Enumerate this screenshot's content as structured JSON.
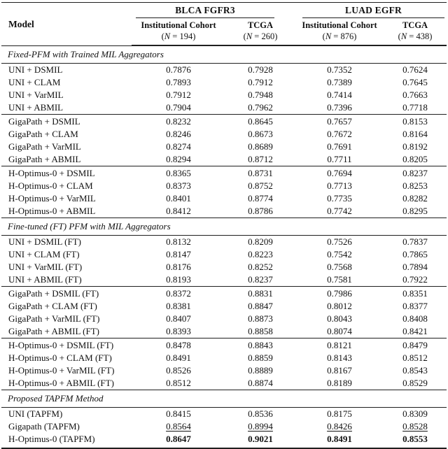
{
  "page": {
    "background_color": "#ffffff",
    "text_color": "#111111",
    "rule_color": "#1f1f1f"
  },
  "table": {
    "header": {
      "model_label": "Model",
      "groups": [
        {
          "label": "BLCA FGFR3",
          "columns": [
            {
              "name": "Institutional Cohort",
              "n": "(N = 194)"
            },
            {
              "name": "TCGA",
              "n": "(N = 260)"
            }
          ]
        },
        {
          "label": "LUAD EGFR",
          "columns": [
            {
              "name": "Institutional Cohort",
              "n": "(N = 876)"
            },
            {
              "name": "TCGA",
              "n": "(N = 438)"
            }
          ]
        }
      ]
    },
    "sections": [
      {
        "title": "Fixed-PFM with Trained MIL Aggregators",
        "row_groups": [
          [
            {
              "model": "UNI + DSMIL",
              "values": [
                "0.7876",
                "0.7928",
                "0.7352",
                "0.7624"
              ],
              "emphasis": "none"
            },
            {
              "model": "UNI + CLAM",
              "values": [
                "0.7893",
                "0.7912",
                "0.7389",
                "0.7645"
              ],
              "emphasis": "none"
            },
            {
              "model": "UNI + VarMIL",
              "values": [
                "0.7912",
                "0.7948",
                "0.7414",
                "0.7663"
              ],
              "emphasis": "none"
            },
            {
              "model": "UNI + ABMIL",
              "values": [
                "0.7904",
                "0.7962",
                "0.7396",
                "0.7718"
              ],
              "emphasis": "none"
            }
          ],
          [
            {
              "model": "GigaPath + DSMIL",
              "values": [
                "0.8232",
                "0.8645",
                "0.7657",
                "0.8153"
              ],
              "emphasis": "none"
            },
            {
              "model": "GigaPath + CLAM",
              "values": [
                "0.8246",
                "0.8673",
                "0.7672",
                "0.8164"
              ],
              "emphasis": "none"
            },
            {
              "model": "GigaPath + VarMIL",
              "values": [
                "0.8274",
                "0.8689",
                "0.7691",
                "0.8192"
              ],
              "emphasis": "none"
            },
            {
              "model": "GigaPath + ABMIL",
              "values": [
                "0.8294",
                "0.8712",
                "0.7711",
                "0.8205"
              ],
              "emphasis": "none"
            }
          ],
          [
            {
              "model": "H-Optimus-0 + DSMIL",
              "values": [
                "0.8365",
                "0.8731",
                "0.7694",
                "0.8237"
              ],
              "emphasis": "none"
            },
            {
              "model": "H-Optimus-0 + CLAM",
              "values": [
                "0.8373",
                "0.8752",
                "0.7713",
                "0.8253"
              ],
              "emphasis": "none"
            },
            {
              "model": "H-Optimus-0 + VarMIL",
              "values": [
                "0.8401",
                "0.8774",
                "0.7735",
                "0.8282"
              ],
              "emphasis": "none"
            },
            {
              "model": "H-Optimus-0 + ABMIL",
              "values": [
                "0.8412",
                "0.8786",
                "0.7742",
                "0.8295"
              ],
              "emphasis": "none"
            }
          ]
        ]
      },
      {
        "title": "Fine-tuned (FT) PFM with MIL Aggregators",
        "row_groups": [
          [
            {
              "model": "UNI + DSMIL (FT)",
              "values": [
                "0.8132",
                "0.8209",
                "0.7526",
                "0.7837"
              ],
              "emphasis": "none"
            },
            {
              "model": "UNI + CLAM (FT)",
              "values": [
                "0.8147",
                "0.8223",
                "0.7542",
                "0.7865"
              ],
              "emphasis": "none"
            },
            {
              "model": "UNI + VarMIL (FT)",
              "values": [
                "0.8176",
                "0.8252",
                "0.7568",
                "0.7894"
              ],
              "emphasis": "none"
            },
            {
              "model": "UNI + ABMIL (FT)",
              "values": [
                "0.8193",
                "0.8237",
                "0.7581",
                "0.7922"
              ],
              "emphasis": "none"
            }
          ],
          [
            {
              "model": "GigaPath + DSMIL (FT)",
              "values": [
                "0.8372",
                "0.8831",
                "0.7986",
                "0.8351"
              ],
              "emphasis": "none"
            },
            {
              "model": "GigaPath + CLAM (FT)",
              "values": [
                "0.8381",
                "0.8847",
                "0.8012",
                "0.8377"
              ],
              "emphasis": "none"
            },
            {
              "model": "GigaPath + VarMIL (FT)",
              "values": [
                "0.8407",
                "0.8873",
                "0.8043",
                "0.8408"
              ],
              "emphasis": "none"
            },
            {
              "model": "GigaPath + ABMIL (FT)",
              "values": [
                "0.8393",
                "0.8858",
                "0.8074",
                "0.8421"
              ],
              "emphasis": "none"
            }
          ],
          [
            {
              "model": "H-Optimus-0 + DSMIL (FT)",
              "values": [
                "0.8478",
                "0.8843",
                "0.8121",
                "0.8479"
              ],
              "emphasis": "none"
            },
            {
              "model": "H-Optimus-0 + CLAM (FT)",
              "values": [
                "0.8491",
                "0.8859",
                "0.8143",
                "0.8512"
              ],
              "emphasis": "none"
            },
            {
              "model": "H-Optimus-0 + VarMIL (FT)",
              "values": [
                "0.8526",
                "0.8889",
                "0.8167",
                "0.8543"
              ],
              "emphasis": "none"
            },
            {
              "model": "H-Optimus-0 + ABMIL (FT)",
              "values": [
                "0.8512",
                "0.8874",
                "0.8189",
                "0.8529"
              ],
              "emphasis": "none"
            }
          ]
        ]
      },
      {
        "title": "Proposed TAPFM Method",
        "row_groups": [
          [
            {
              "model": "UNI (TAPFM)",
              "values": [
                "0.8415",
                "0.8536",
                "0.8175",
                "0.8309"
              ],
              "emphasis": "none"
            },
            {
              "model": "Gigapath (TAPFM)",
              "values": [
                "0.8564",
                "0.8994",
                "0.8426",
                "0.8528"
              ],
              "emphasis": "underline"
            },
            {
              "model": "H-Optimus-0 (TAPFM)",
              "values": [
                "0.8647",
                "0.9021",
                "0.8491",
                "0.8553"
              ],
              "emphasis": "bold"
            }
          ]
        ]
      }
    ]
  }
}
